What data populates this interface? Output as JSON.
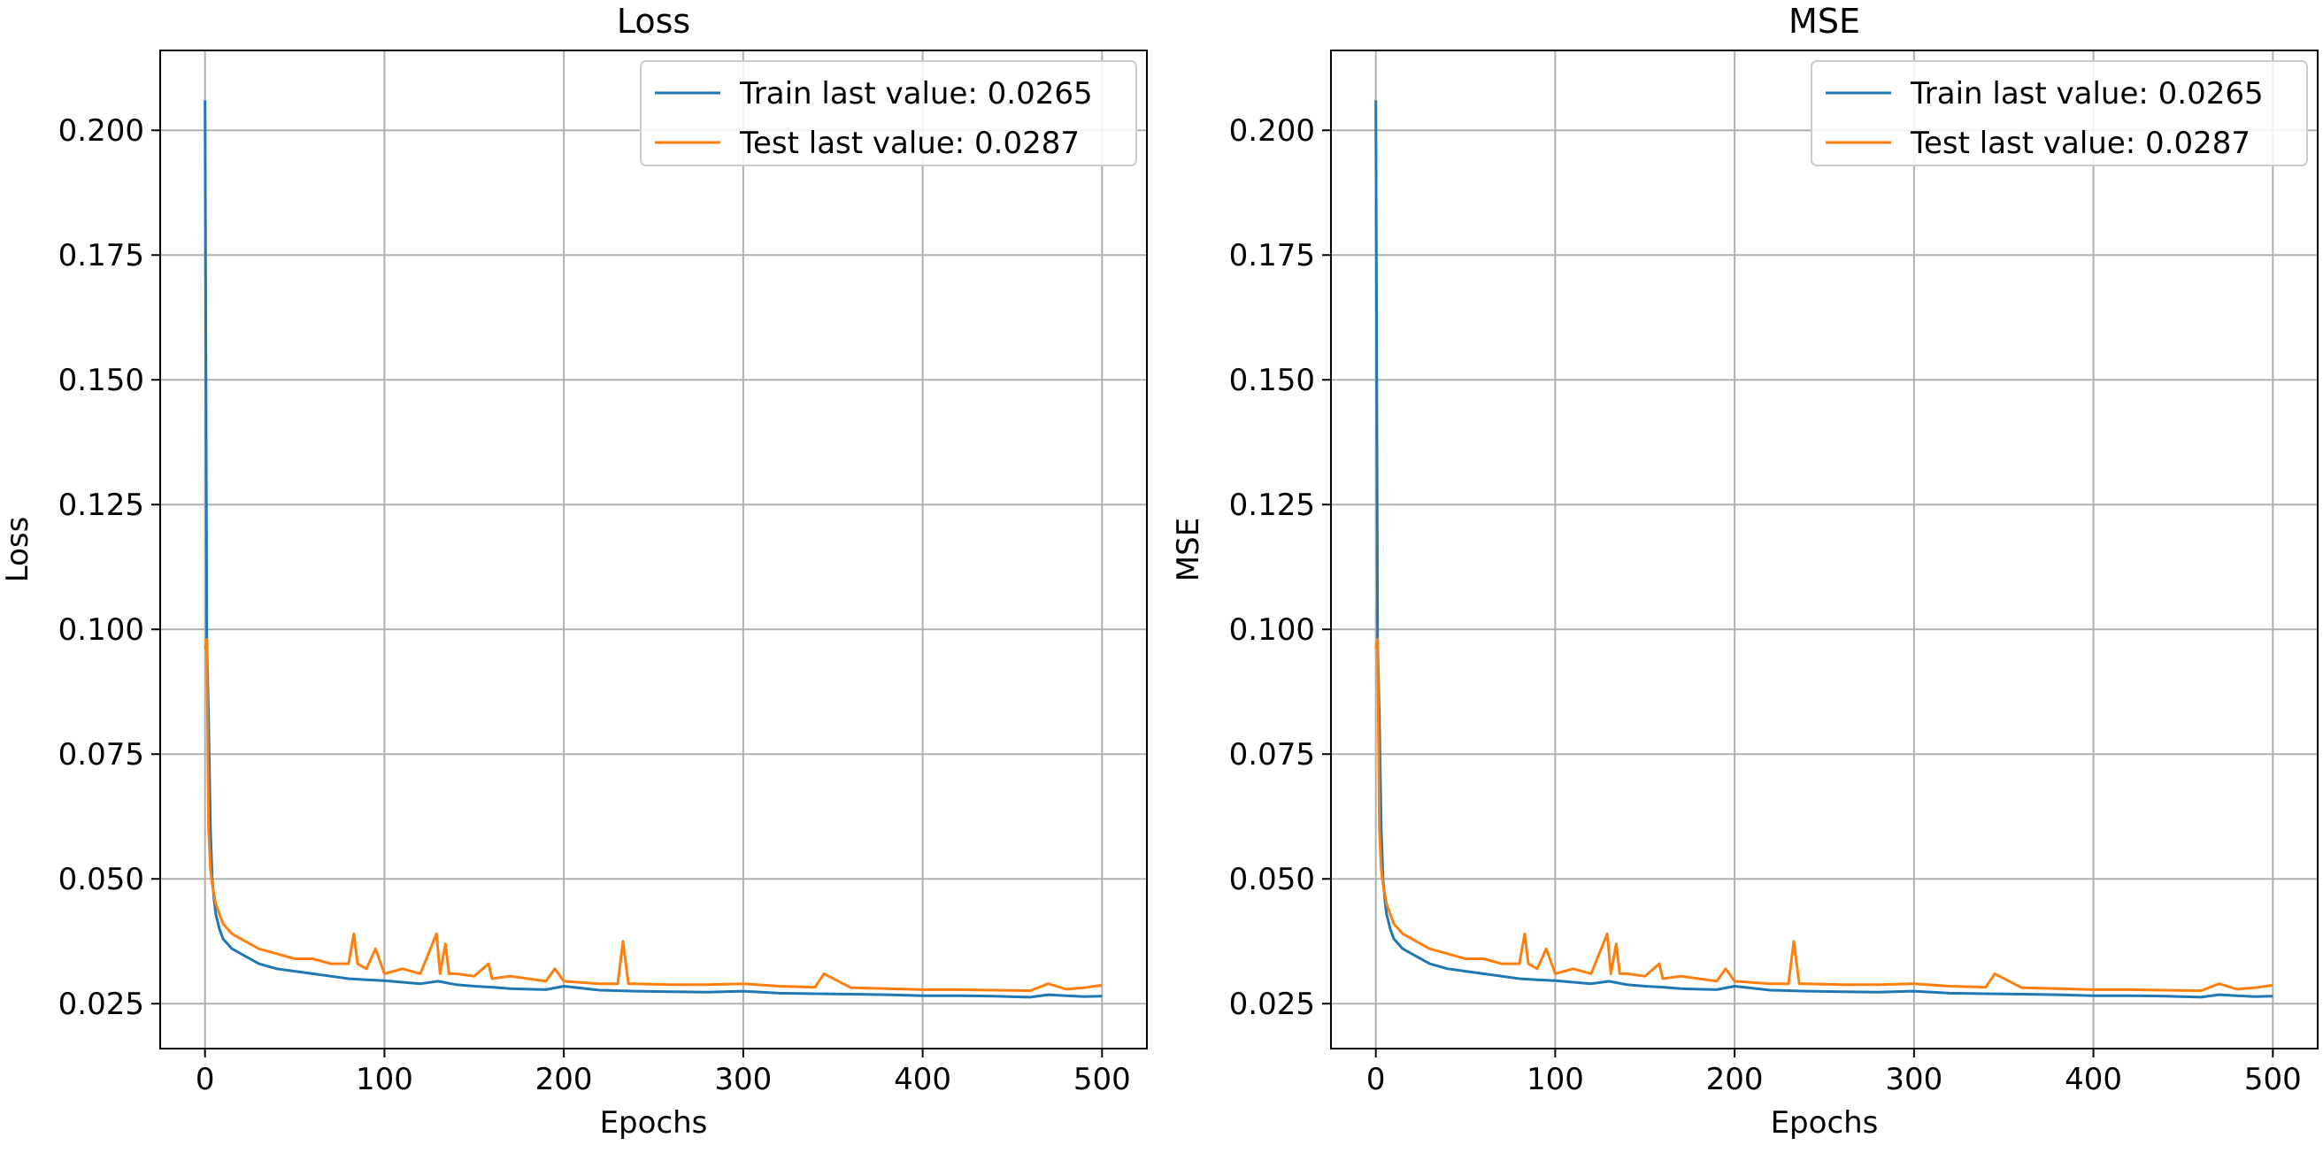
{
  "chart_data": [
    {
      "type": "line",
      "title": "Loss",
      "xlabel": "Epochs",
      "ylabel": "Loss",
      "xlim": [
        -25,
        525
      ],
      "ylim": [
        0.016,
        0.216
      ],
      "xticks": [
        0,
        100,
        200,
        300,
        400,
        500
      ],
      "xtick_labels": [
        "0",
        "100",
        "200",
        "300",
        "400",
        "500"
      ],
      "yticks": [
        0.025,
        0.05,
        0.075,
        0.1,
        0.125,
        0.15,
        0.175,
        0.2
      ],
      "ytick_labels": [
        "0.025",
        "0.050",
        "0.075",
        "0.100",
        "0.125",
        "0.150",
        "0.175",
        "0.200"
      ],
      "grid": true,
      "legend_position": "top-right",
      "series": [
        {
          "name": "Train last value: 0.0265",
          "color": "#1f77b4",
          "x": [
            0,
            1,
            2,
            3,
            4,
            5,
            6,
            8,
            10,
            15,
            20,
            30,
            40,
            50,
            60,
            70,
            80,
            90,
            100,
            110,
            120,
            130,
            140,
            150,
            160,
            170,
            180,
            190,
            200,
            220,
            240,
            260,
            280,
            300,
            320,
            340,
            360,
            380,
            400,
            420,
            440,
            460,
            470,
            480,
            490,
            500
          ],
          "values": [
            0.206,
            0.098,
            0.082,
            0.06,
            0.05,
            0.046,
            0.043,
            0.04,
            0.038,
            0.036,
            0.035,
            0.033,
            0.032,
            0.0315,
            0.031,
            0.0305,
            0.03,
            0.0298,
            0.0296,
            0.0293,
            0.029,
            0.0295,
            0.0288,
            0.0285,
            0.0283,
            0.028,
            0.0279,
            0.0278,
            0.0285,
            0.0277,
            0.0275,
            0.0274,
            0.0273,
            0.0275,
            0.0271,
            0.027,
            0.0269,
            0.0268,
            0.0266,
            0.0266,
            0.0265,
            0.0263,
            0.0268,
            0.0266,
            0.0264,
            0.0265
          ]
        },
        {
          "name": "Test last value: 0.0287",
          "color": "#ff7f0e",
          "x": [
            0,
            1,
            2,
            3,
            4,
            5,
            6,
            8,
            10,
            15,
            20,
            30,
            40,
            50,
            60,
            70,
            80,
            83,
            85,
            90,
            95,
            100,
            110,
            120,
            129,
            131,
            134,
            136,
            140,
            150,
            158,
            160,
            170,
            180,
            190,
            195,
            200,
            220,
            230,
            233,
            236,
            240,
            260,
            280,
            300,
            320,
            340,
            345,
            360,
            380,
            400,
            420,
            440,
            460,
            470,
            480,
            490,
            500
          ],
          "values": [
            0.096,
            0.098,
            0.06,
            0.052,
            0.049,
            0.047,
            0.045,
            0.043,
            0.041,
            0.039,
            0.038,
            0.036,
            0.035,
            0.034,
            0.034,
            0.033,
            0.033,
            0.039,
            0.033,
            0.032,
            0.036,
            0.031,
            0.032,
            0.031,
            0.039,
            0.031,
            0.037,
            0.031,
            0.031,
            0.0305,
            0.033,
            0.03,
            0.0305,
            0.03,
            0.0295,
            0.032,
            0.0295,
            0.029,
            0.029,
            0.0375,
            0.029,
            0.029,
            0.0288,
            0.0288,
            0.029,
            0.0285,
            0.0283,
            0.031,
            0.0282,
            0.028,
            0.0278,
            0.0278,
            0.0277,
            0.0276,
            0.029,
            0.0279,
            0.0282,
            0.0287
          ]
        }
      ]
    },
    {
      "type": "line",
      "title": "MSE",
      "xlabel": "Epochs",
      "ylabel": "MSE",
      "xlim": [
        -25,
        525
      ],
      "ylim": [
        0.016,
        0.216
      ],
      "xticks": [
        0,
        100,
        200,
        300,
        400,
        500
      ],
      "xtick_labels": [
        "0",
        "100",
        "200",
        "300",
        "400",
        "500"
      ],
      "yticks": [
        0.025,
        0.05,
        0.075,
        0.1,
        0.125,
        0.15,
        0.175,
        0.2
      ],
      "ytick_labels": [
        "0.025",
        "0.050",
        "0.075",
        "0.100",
        "0.125",
        "0.150",
        "0.175",
        "0.200"
      ],
      "grid": true,
      "legend_position": "top-right",
      "series": [
        {
          "name": "Train last value: 0.0265",
          "color": "#1f77b4",
          "x": [
            0,
            1,
            2,
            3,
            4,
            5,
            6,
            8,
            10,
            15,
            20,
            30,
            40,
            50,
            60,
            70,
            80,
            90,
            100,
            110,
            120,
            130,
            140,
            150,
            160,
            170,
            180,
            190,
            200,
            220,
            240,
            260,
            280,
            300,
            320,
            340,
            360,
            380,
            400,
            420,
            440,
            460,
            470,
            480,
            490,
            500
          ],
          "values": [
            0.206,
            0.098,
            0.082,
            0.06,
            0.05,
            0.046,
            0.043,
            0.04,
            0.038,
            0.036,
            0.035,
            0.033,
            0.032,
            0.0315,
            0.031,
            0.0305,
            0.03,
            0.0298,
            0.0296,
            0.0293,
            0.029,
            0.0295,
            0.0288,
            0.0285,
            0.0283,
            0.028,
            0.0279,
            0.0278,
            0.0285,
            0.0277,
            0.0275,
            0.0274,
            0.0273,
            0.0275,
            0.0271,
            0.027,
            0.0269,
            0.0268,
            0.0266,
            0.0266,
            0.0265,
            0.0263,
            0.0268,
            0.0266,
            0.0264,
            0.0265
          ]
        },
        {
          "name": "Test last value: 0.0287",
          "color": "#ff7f0e",
          "x": [
            0,
            1,
            2,
            3,
            4,
            5,
            6,
            8,
            10,
            15,
            20,
            30,
            40,
            50,
            60,
            70,
            80,
            83,
            85,
            90,
            95,
            100,
            110,
            120,
            129,
            131,
            134,
            136,
            140,
            150,
            158,
            160,
            170,
            180,
            190,
            195,
            200,
            220,
            230,
            233,
            236,
            240,
            260,
            280,
            300,
            320,
            340,
            345,
            360,
            380,
            400,
            420,
            440,
            460,
            470,
            480,
            490,
            500
          ],
          "values": [
            0.096,
            0.098,
            0.06,
            0.052,
            0.049,
            0.047,
            0.045,
            0.043,
            0.041,
            0.039,
            0.038,
            0.036,
            0.035,
            0.034,
            0.034,
            0.033,
            0.033,
            0.039,
            0.033,
            0.032,
            0.036,
            0.031,
            0.032,
            0.031,
            0.039,
            0.031,
            0.037,
            0.031,
            0.031,
            0.0305,
            0.033,
            0.03,
            0.0305,
            0.03,
            0.0295,
            0.032,
            0.0295,
            0.029,
            0.029,
            0.0375,
            0.029,
            0.029,
            0.0288,
            0.0288,
            0.029,
            0.0285,
            0.0283,
            0.031,
            0.0282,
            0.028,
            0.0278,
            0.0278,
            0.0277,
            0.0276,
            0.029,
            0.0279,
            0.0282,
            0.0287
          ]
        }
      ]
    }
  ]
}
